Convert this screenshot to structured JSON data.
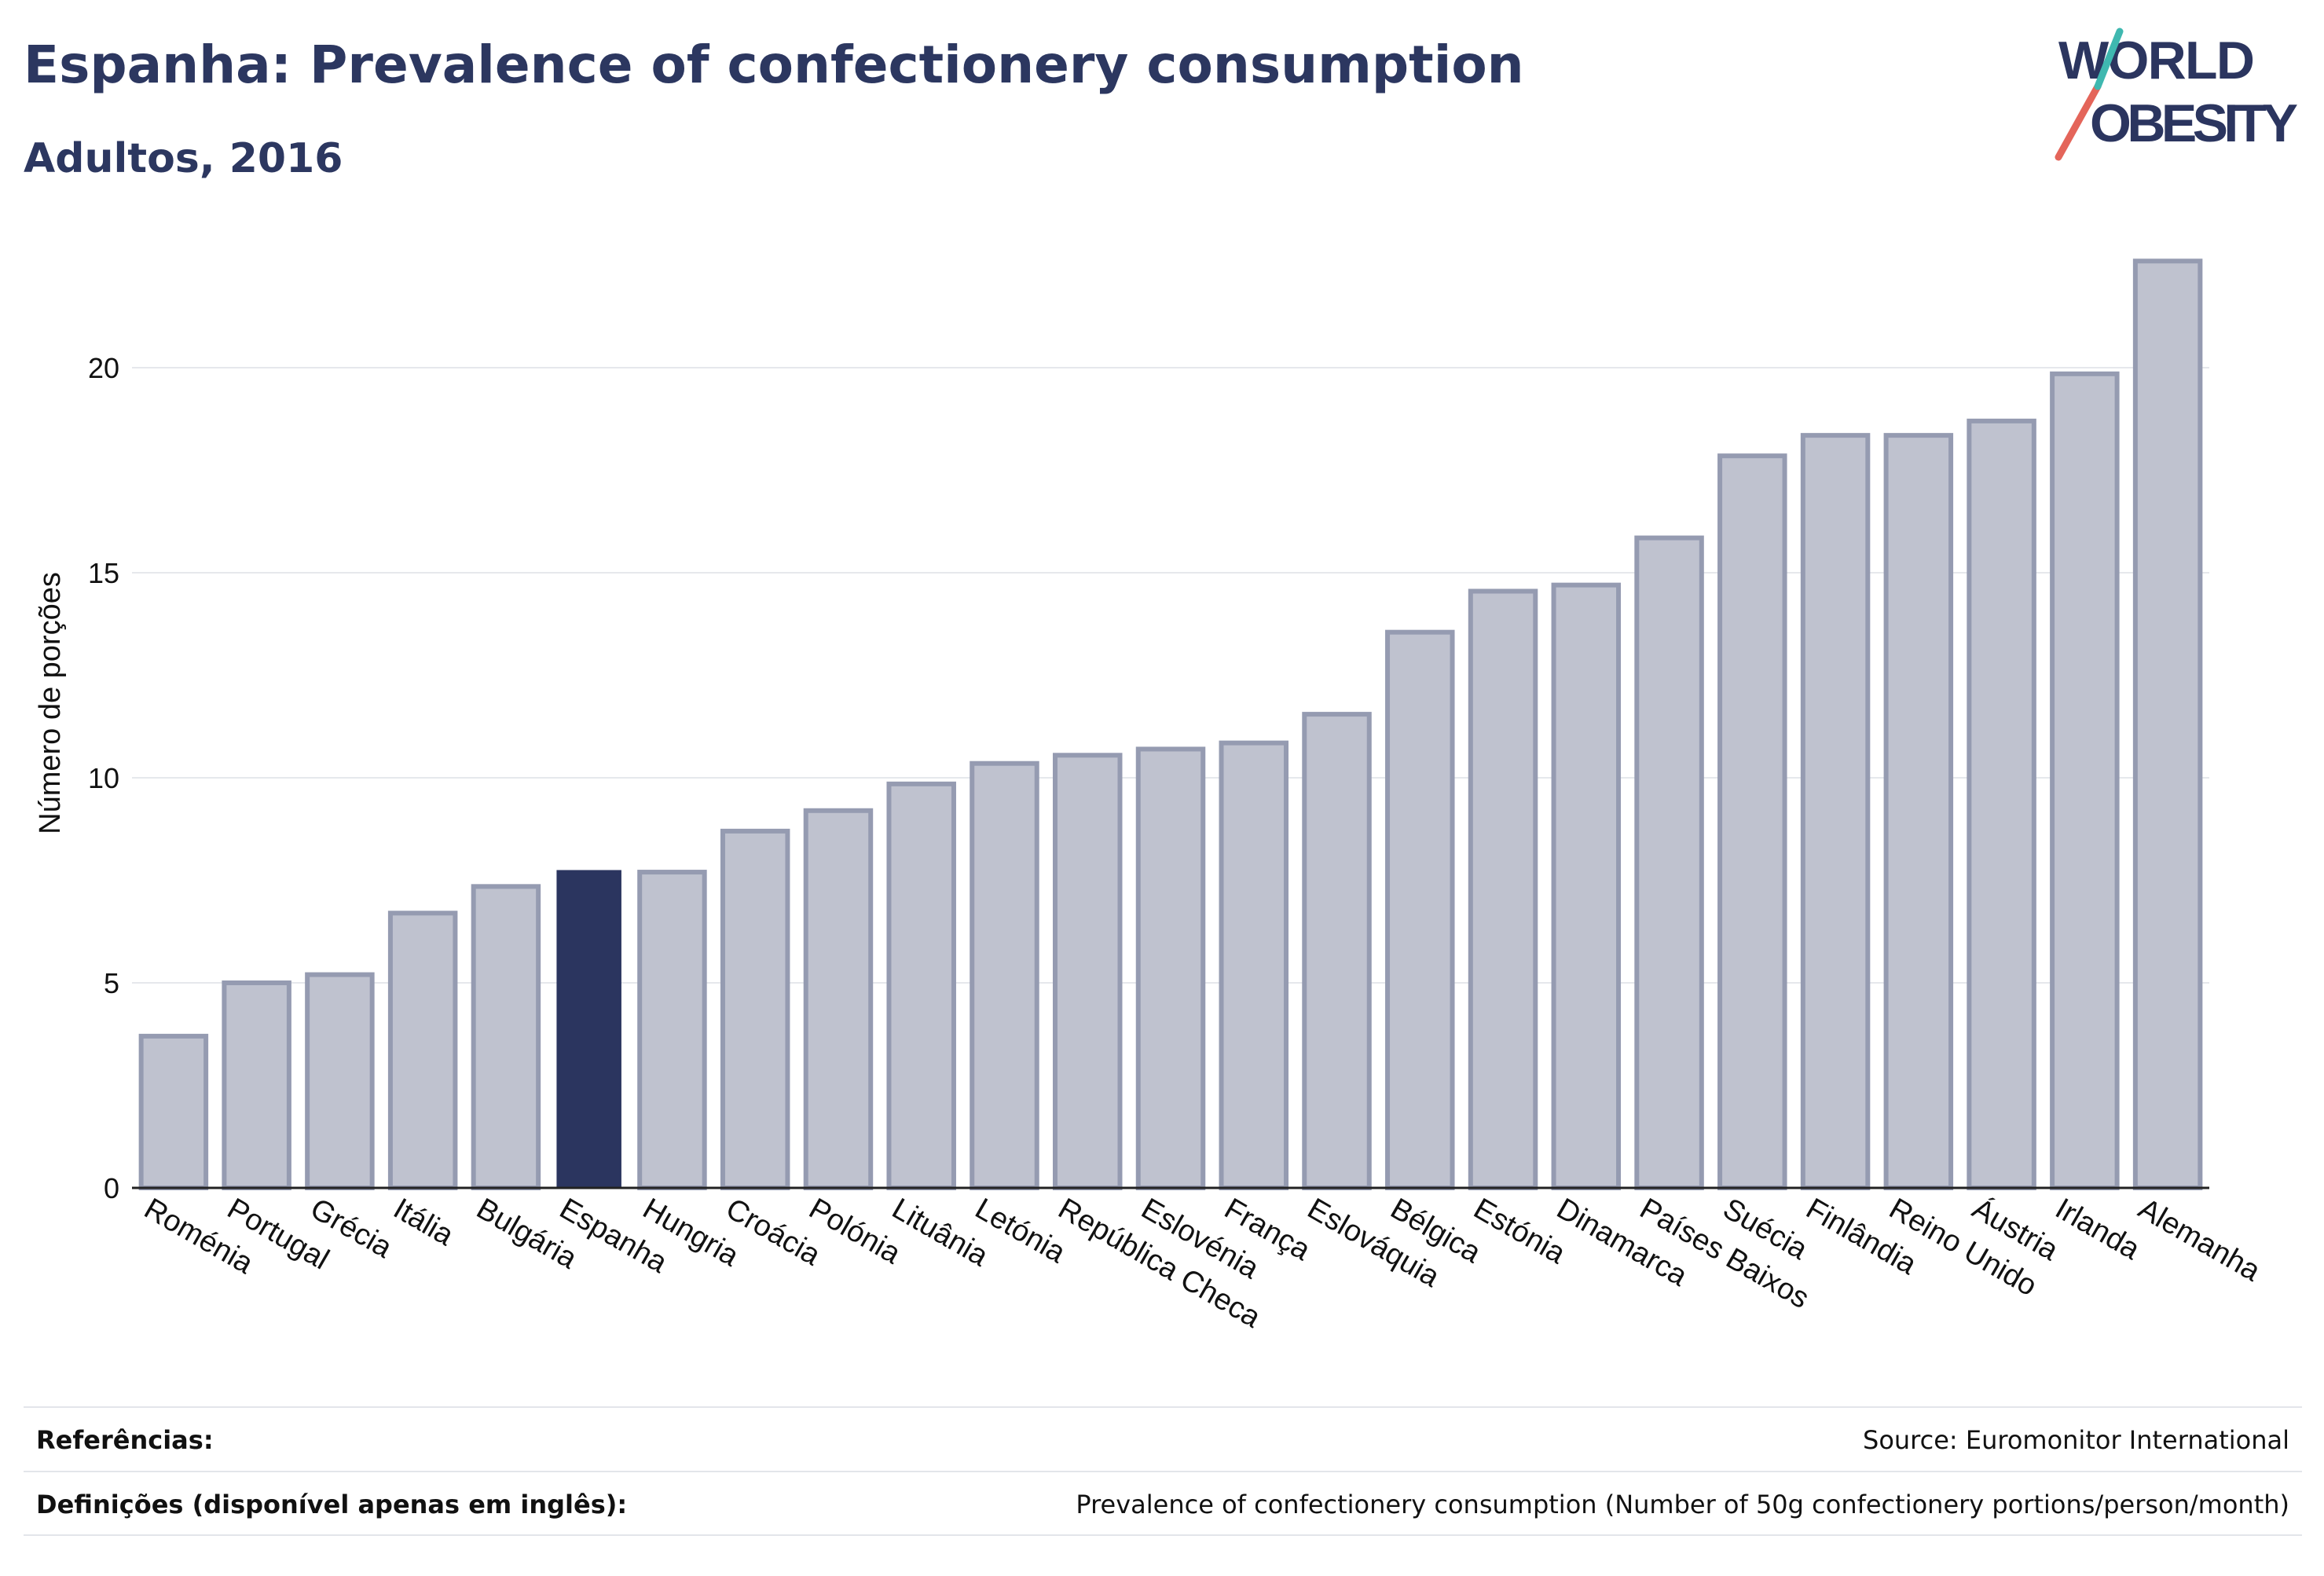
{
  "header": {
    "title": "Espanha: Prevalence of confectionery consumption",
    "subtitle": "Adultos, 2016",
    "logo_text": "WORLD OBESITY"
  },
  "colors": {
    "highlight": "#2b355f",
    "bar_fill": "#bfc2cf",
    "bar_stroke": "#959bb1",
    "grid": "#e6e8ec",
    "axis": "#222222",
    "logo_teal": "#3fb8b0",
    "logo_coral": "#e4655a"
  },
  "chart_data": {
    "type": "bar",
    "title": "Espanha: Prevalence of confectionery consumption",
    "subtitle": "Adultos, 2016",
    "xlabel": "",
    "ylabel": "Número de porções",
    "ylim": [
      0,
      23
    ],
    "yticks": [
      0,
      5,
      10,
      15,
      20
    ],
    "grid": true,
    "highlight": "Espanha",
    "categories": [
      "Roménia",
      "Portugal",
      "Grécia",
      "Itália",
      "Bulgária",
      "Espanha",
      "Hungria",
      "Croácia",
      "Polónia",
      "Lituânia",
      "Letónia",
      "República Checa",
      "Eslovénia",
      "França",
      "Eslováquia",
      "Bélgica",
      "Estónia",
      "Dinamarca",
      "Países Baixos",
      "Suécia",
      "Finlândia",
      "Reino Unido",
      "Áustria",
      "Irlanda",
      "Alemanha"
    ],
    "values": [
      3.7,
      5.0,
      5.2,
      6.7,
      7.35,
      7.75,
      7.7,
      8.7,
      9.2,
      9.85,
      10.35,
      10.55,
      10.7,
      10.85,
      11.55,
      13.55,
      14.55,
      14.7,
      15.85,
      17.85,
      18.35,
      18.35,
      18.7,
      19.85,
      22.6
    ]
  },
  "footer": {
    "references_label": "Referências:",
    "references_value": "Source: Euromonitor International",
    "definitions_label": "Definições (disponível apenas em inglês):",
    "definitions_value": "Prevalence of confectionery consumption (Number of 50g confectionery portions/person/month)"
  }
}
